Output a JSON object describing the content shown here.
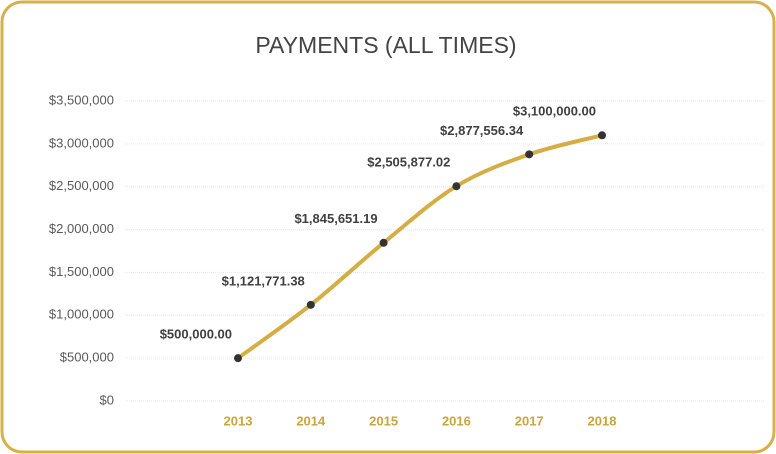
{
  "chart_data": {
    "type": "line",
    "title": "PAYMENTS (ALL TIMES)",
    "categories": [
      "2013",
      "2014",
      "2015",
      "2016",
      "2017",
      "2018"
    ],
    "values": [
      500000,
      1121771.38,
      1845651.19,
      2505877.02,
      2877556.34,
      3100000
    ],
    "value_labels": [
      "$500,000.00",
      "$1,121,771.38",
      "$1,845,651.19",
      "$2,505,877.02",
      "$2,877,556.34",
      "$3,100,000.00"
    ],
    "color": "#d4ae45",
    "marker_color": "#333333",
    "ylim": [
      0,
      3500000
    ],
    "yticks": [
      {
        "value": 0,
        "label": "$0"
      },
      {
        "value": 500000,
        "label": "$500,000"
      },
      {
        "value": 1000000,
        "label": "$1,000,000"
      },
      {
        "value": 1500000,
        "label": "$1,500,000"
      },
      {
        "value": 2000000,
        "label": "$2,000,000"
      },
      {
        "value": 2500000,
        "label": "$2,500,000"
      },
      {
        "value": 3000000,
        "label": "$3,000,000"
      },
      {
        "value": 3500000,
        "label": "$3,500,000"
      }
    ],
    "grid": true
  }
}
